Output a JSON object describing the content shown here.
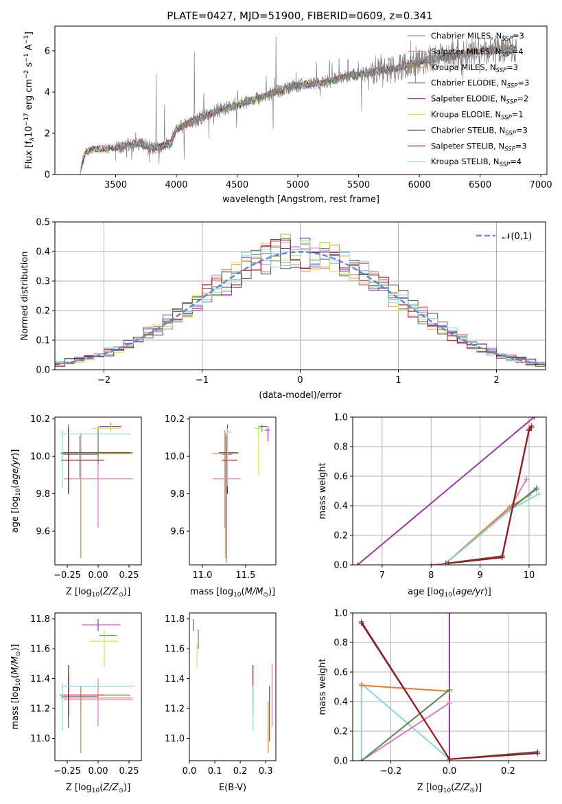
{
  "figure": {
    "title": "PLATE=0427, MJD=51900, FIBERID=0609, z=0.341"
  },
  "colors": {
    "chabrier_miles": "#7b96e0",
    "salpeter_miles": "#e377c2",
    "kroupa_miles": "#e8822b",
    "chabrier_elodie": "#4f8a4f",
    "salpeter_elodie": "#9b35a8",
    "kroupa_elodie": "#c9e84a",
    "chabrier_stelib": "#555555",
    "salpeter_stelib": "#a3141c",
    "kroupa_stelib": "#86d6e3",
    "data": "#808080",
    "normal": "#5b84d6",
    "grid": "#b0b0b0"
  },
  "chart_data": [
    {
      "id": "spectrum",
      "type": "line",
      "title": "PLATE=0427, MJD=51900, FIBERID=0609, z=0.341",
      "xlabel": "wavelength [Angstrom, rest frame]",
      "ylabel": "Flux [f_λ10⁻¹⁷ erg cm⁻² s⁻¹ A⁻¹]",
      "xlim": [
        3000,
        7050
      ],
      "ylim": [
        0,
        7.2
      ],
      "xticks": [
        3500,
        4000,
        4500,
        5000,
        5500,
        6000,
        6500,
        7000
      ],
      "yticks": [
        0,
        2,
        4,
        6
      ],
      "legend_position": "top-right",
      "continuum": {
        "x": [
          3200,
          3250,
          3300,
          3400,
          3500,
          3600,
          3700,
          3800,
          3900,
          3950,
          4000,
          4100,
          4200,
          4300,
          4400,
          4500,
          4600,
          4700,
          4800,
          4900,
          5000,
          5100,
          5200,
          5300,
          5400,
          5500,
          5600,
          5700,
          5800,
          5900,
          6000,
          6100,
          6200,
          6300,
          6400,
          6500,
          6600,
          6700,
          6800
        ],
        "y": [
          0.0,
          1.1,
          1.2,
          1.25,
          1.3,
          1.45,
          1.5,
          1.3,
          1.4,
          1.5,
          2.2,
          2.5,
          2.75,
          3.0,
          3.2,
          3.35,
          3.6,
          3.75,
          3.95,
          4.2,
          4.3,
          4.4,
          4.45,
          4.6,
          4.75,
          4.85,
          4.95,
          5.05,
          5.15,
          5.3,
          5.45,
          5.6,
          5.7,
          5.8,
          5.9,
          6.0,
          6.05,
          6.1,
          6.15
        ]
      },
      "series": [
        {
          "name": "Chabrier MILES, N_SSP=3",
          "label_main": "Chabrier MILES, N",
          "label_sub": "SSP",
          "label_tail": "=3",
          "color_key": "chabrier_miles"
        },
        {
          "name": "Salpeter MILES, N_SSP=4",
          "label_main": "Salpeter MILES, N",
          "label_sub": "SSP",
          "label_tail": "=4",
          "color_key": "salpeter_miles"
        },
        {
          "name": "Kroupa MILES, N_SSP=3",
          "label_main": "Kroupa MILES, N",
          "label_sub": "SSP",
          "label_tail": "=3",
          "color_key": "kroupa_miles"
        },
        {
          "name": "Chabrier ELODIE, N_SSP=3",
          "label_main": "Chabrier ELODIE, N",
          "label_sub": "SSP",
          "label_tail": "=3",
          "color_key": "chabrier_elodie"
        },
        {
          "name": "Salpeter ELODIE, N_SSP=2",
          "label_main": "Salpeter ELODIE, N",
          "label_sub": "SSP",
          "label_tail": "=2",
          "color_key": "salpeter_elodie"
        },
        {
          "name": "Kroupa ELODIE, N_SSP=1",
          "label_main": "Kroupa ELODIE, N",
          "label_sub": "SSP",
          "label_tail": "=1",
          "color_key": "kroupa_elodie"
        },
        {
          "name": "Chabrier STELIB, N_SSP=3",
          "label_main": "Chabrier STELIB, N",
          "label_sub": "SSP",
          "label_tail": "=3",
          "color_key": "chabrier_stelib"
        },
        {
          "name": "Salpeter STELIB, N_SSP=3",
          "label_main": "Salpeter STELIB, N",
          "label_sub": "SSP",
          "label_tail": "=3",
          "color_key": "salpeter_stelib"
        },
        {
          "name": "Kroupa STELIB, N_SSP=4",
          "label_main": "Kroupa STELIB, N",
          "label_sub": "SSP",
          "label_tail": "=4",
          "color_key": "kroupa_stelib"
        }
      ]
    },
    {
      "id": "residuals",
      "type": "line",
      "xlabel": "(data-model)/error",
      "ylabel": "Normed distribution",
      "xlim": [
        -2.5,
        2.5
      ],
      "ylim": [
        0,
        0.5
      ],
      "xticks": [
        -2,
        -1,
        0,
        1,
        2
      ],
      "yticks": [
        0.0,
        0.1,
        0.2,
        0.3,
        0.4,
        0.5
      ],
      "grid": true,
      "legend_position": "top-right",
      "legend_label": "𝒩(0,1)",
      "normal_curve": {
        "mean": 0,
        "sigma": 1
      },
      "bin_width": 0.1
    },
    {
      "id": "age_vs_Z",
      "type": "scatter",
      "xlabel": "Z [log10(Z/Z⊙)]",
      "ylabel": "age [log10(age/yr)]",
      "xlim": [
        -0.35,
        0.35
      ],
      "ylim": [
        9.42,
        10.21
      ],
      "xticks": [
        -0.25,
        0.0,
        0.25
      ],
      "yticks": [
        9.6,
        9.8,
        10.0,
        10.2
      ],
      "points": [
        {
          "color_key": "chabrier_miles",
          "x": -0.15,
          "xerr": [
            0.14,
            0.15
          ],
          "y": 10.01,
          "yerr": [
            0.13,
            0.1
          ]
        },
        {
          "color_key": "salpeter_miles",
          "x": 0.0,
          "xerr": [
            0.28,
            0.28
          ],
          "y": 9.88,
          "yerr": [
            0.26,
            0.26
          ]
        },
        {
          "color_key": "kroupa_miles",
          "x": -0.14,
          "xerr": [
            0.17,
            0.42
          ],
          "y": 10.015,
          "yerr": [
            0.56,
            0.11
          ]
        },
        {
          "color_key": "chabrier_elodie",
          "x": 0.0,
          "xerr": [
            0.28,
            0.28
          ],
          "y": 10.02,
          "yerr": [
            0.06,
            0.14
          ]
        },
        {
          "color_key": "salpeter_elodie",
          "x": 0.1,
          "xerr": [
            0.09,
            0.09
          ],
          "y": 10.16,
          "yerr": [
            0.02,
            0.02
          ]
        },
        {
          "color_key": "kroupa_elodie",
          "x": 0.1,
          "xerr": [
            0.15,
            0.08
          ],
          "y": 10.15,
          "yerr": [
            0.02,
            0.02
          ]
        },
        {
          "color_key": "chabrier_stelib",
          "x": -0.24,
          "xerr": [
            0.06,
            0.5
          ],
          "y": 10.02,
          "yerr": [
            0.22,
            0.15
          ]
        },
        {
          "color_key": "salpeter_stelib",
          "x": -0.24,
          "xerr": [
            0.06,
            0.29
          ],
          "y": 9.98,
          "yerr": [
            0.18,
            0.17
          ]
        },
        {
          "color_key": "kroupa_stelib",
          "x": -0.29,
          "xerr": [
            0.01,
            0.55
          ],
          "y": 10.12,
          "yerr": [
            0.29,
            0.02
          ]
        }
      ]
    },
    {
      "id": "age_vs_mass",
      "type": "scatter",
      "xlabel": "mass [log10(M/M⊙)]",
      "ylabel": "",
      "xlim": [
        10.85,
        11.85
      ],
      "ylim": [
        9.42,
        10.21
      ],
      "xticks": [
        11.0,
        11.5
      ],
      "yticks": [
        9.6,
        9.8,
        10.0,
        10.2
      ],
      "points": [
        {
          "color_key": "chabrier_miles",
          "x": 11.28,
          "xerr": [
            0.05,
            0.06
          ],
          "y": 10.01,
          "yerr": [
            0.58,
            0.1
          ]
        },
        {
          "color_key": "salpeter_miles",
          "x": 11.26,
          "xerr": [
            0.14,
            0.18
          ],
          "y": 9.88,
          "yerr": [
            0.26,
            0.26
          ]
        },
        {
          "color_key": "kroupa_miles",
          "x": 11.27,
          "xerr": [
            0.16,
            0.15
          ],
          "y": 10.015,
          "yerr": [
            0.56,
            0.11
          ]
        },
        {
          "color_key": "chabrier_elodie",
          "x": 11.69,
          "xerr": [
            0.04,
            0.06
          ],
          "y": 10.16,
          "yerr": [
            0.03,
            0.01
          ]
        },
        {
          "color_key": "salpeter_elodie",
          "x": 11.76,
          "xerr": [
            0.04,
            0.02
          ],
          "y": 10.14,
          "yerr": [
            0.06,
            0.02
          ]
        },
        {
          "color_key": "kroupa_elodie",
          "x": 11.65,
          "xerr": [
            0.05,
            0.05
          ],
          "y": 10.15,
          "yerr": [
            0.25,
            0.01
          ]
        },
        {
          "color_key": "chabrier_stelib",
          "x": 11.29,
          "xerr": [
            0.1,
            0.12
          ],
          "y": 10.02,
          "yerr": [
            0.22,
            0.15
          ]
        },
        {
          "color_key": "salpeter_stelib",
          "x": 11.29,
          "xerr": [
            0.06,
            0.11
          ],
          "y": 9.98,
          "yerr": [
            0.18,
            0.17
          ]
        },
        {
          "color_key": "kroupa_stelib",
          "x": 11.29,
          "xerr": [
            0.02,
            0.05
          ],
          "y": 10.13,
          "yerr": [
            0.29,
            0.02
          ]
        }
      ]
    },
    {
      "id": "mass_weight_vs_age",
      "type": "line",
      "xlabel": "age [log10(age/yr)]",
      "ylabel": "mass weight",
      "xlim": [
        6.4,
        10.35
      ],
      "ylim": [
        0,
        1.0
      ],
      "xticks": [
        7,
        8,
        9,
        10
      ],
      "yticks": [
        0.0,
        0.2,
        0.4,
        0.6,
        0.8,
        1.0
      ],
      "grid": true,
      "series": [
        {
          "color_key": "salpeter_elodie",
          "x": [
            6.5,
            10.1
          ],
          "y": [
            0.0,
            1.0
          ]
        },
        {
          "color_key": "chabrier_miles",
          "x": [
            8.3,
            9.6,
            10.15
          ],
          "y": [
            0.01,
            0.38,
            0.51
          ]
        },
        {
          "color_key": "salpeter_miles",
          "x": [
            8.0,
            8.3,
            9.6,
            9.95
          ],
          "y": [
            0.0,
            0.01,
            0.38,
            0.58
          ]
        },
        {
          "color_key": "kroupa_miles",
          "x": [
            8.3,
            9.6,
            10.0
          ],
          "y": [
            0.01,
            0.39,
            0.47
          ]
        },
        {
          "color_key": "chabrier_elodie",
          "x": [
            8.3,
            9.6,
            10.15
          ],
          "y": [
            0.01,
            0.37,
            0.52
          ]
        },
        {
          "color_key": "kroupa_stelib",
          "x": [
            8.3,
            9.6,
            10.2
          ],
          "y": [
            0.01,
            0.37,
            0.48
          ]
        },
        {
          "color_key": "chabrier_stelib",
          "x": [
            8.3,
            9.45,
            10.0,
            10.05
          ],
          "y": [
            0.01,
            0.06,
            0.92,
            0.94
          ]
        },
        {
          "color_key": "salpeter_stelib",
          "x": [
            8.35,
            9.45,
            10.0,
            10.05
          ],
          "y": [
            0.01,
            0.05,
            0.91,
            0.93
          ]
        }
      ]
    },
    {
      "id": "mass_vs_Z",
      "type": "scatter",
      "xlabel": "Z [log10(Z/Z⊙)]",
      "ylabel": "mass [log10(M/M⊙)]",
      "xlim": [
        -0.35,
        0.35
      ],
      "ylim": [
        10.85,
        11.84
      ],
      "xticks": [
        -0.25,
        0.0,
        0.25
      ],
      "yticks": [
        11.0,
        11.2,
        11.4,
        11.6,
        11.8
      ],
      "points": [
        {
          "color_key": "chabrier_miles",
          "x": -0.14,
          "xerr": [
            0.16,
            0.14
          ],
          "y": 11.28,
          "yerr": [
            0.07,
            0.07
          ]
        },
        {
          "color_key": "salpeter_miles",
          "x": 0.0,
          "xerr": [
            0.28,
            0.28
          ],
          "y": 11.26,
          "yerr": [
            0.18,
            0.14
          ]
        },
        {
          "color_key": "kroupa_miles",
          "x": -0.14,
          "xerr": [
            0.16,
            0.42
          ],
          "y": 11.27,
          "yerr": [
            0.37,
            0.08
          ]
        },
        {
          "color_key": "chabrier_elodie",
          "x": 0.05,
          "xerr": [
            0.04,
            0.1
          ],
          "y": 11.69,
          "yerr": [
            0.01,
            0.01
          ]
        },
        {
          "color_key": "salpeter_elodie",
          "x": 0.0,
          "xerr": [
            0.13,
            0.18
          ],
          "y": 11.76,
          "yerr": [
            0.04,
            0.04
          ]
        },
        {
          "color_key": "kroupa_elodie",
          "x": 0.05,
          "xerr": [
            0.12,
            0.11
          ],
          "y": 11.65,
          "yerr": [
            0.17,
            0.08
          ]
        },
        {
          "color_key": "chabrier_stelib",
          "x": -0.24,
          "xerr": [
            0.07,
            0.5
          ],
          "y": 11.29,
          "yerr": [
            0.22,
            0.13
          ]
        },
        {
          "color_key": "salpeter_stelib",
          "x": -0.24,
          "xerr": [
            0.06,
            0.29
          ],
          "y": 11.29,
          "yerr": [
            0.14,
            0.2
          ]
        },
        {
          "color_key": "kroupa_stelib",
          "x": -0.29,
          "xerr": [
            0.01,
            0.59
          ],
          "y": 11.35,
          "yerr": [
            0.3,
            0.02
          ]
        }
      ]
    },
    {
      "id": "mass_vs_ebv",
      "type": "scatter",
      "xlabel": "E(B-V)",
      "ylabel": "",
      "xlim": [
        0.0,
        0.34
      ],
      "ylim": [
        10.85,
        11.84
      ],
      "xticks": [
        0.0,
        0.1,
        0.2,
        0.3
      ],
      "yticks": [
        11.0,
        11.2,
        11.4,
        11.6,
        11.8
      ],
      "points": [
        {
          "color_key": "chabrier_miles",
          "x": 0.25,
          "xerr": [
            0,
            0
          ],
          "y": 11.28,
          "yerr": [
            0.07,
            0.07
          ]
        },
        {
          "color_key": "salpeter_miles",
          "x": 0.325,
          "xerr": [
            0,
            0
          ],
          "y": 11.26,
          "yerr": [
            0.18,
            0.24
          ]
        },
        {
          "color_key": "kroupa_miles",
          "x": 0.31,
          "xerr": [
            0,
            0
          ],
          "y": 11.2,
          "yerr": [
            0.3,
            0.05
          ]
        },
        {
          "color_key": "chabrier_elodie",
          "x": 0.035,
          "xerr": [
            0,
            0
          ],
          "y": 11.66,
          "yerr": [
            0.06,
            0.07
          ]
        },
        {
          "color_key": "salpeter_elodie",
          "x": 0.015,
          "xerr": [
            0,
            0
          ],
          "y": 11.76,
          "yerr": [
            0.04,
            0.04
          ]
        },
        {
          "color_key": "kroupa_elodie",
          "x": 0.03,
          "xerr": [
            0,
            0
          ],
          "y": 11.56,
          "yerr": [
            0.09,
            0.07
          ]
        },
        {
          "color_key": "chabrier_stelib",
          "x": 0.315,
          "xerr": [
            0,
            0
          ],
          "y": 11.2,
          "yerr": [
            0.22,
            0.15
          ]
        },
        {
          "color_key": "salpeter_stelib",
          "x": 0.25,
          "xerr": [
            0,
            0
          ],
          "y": 11.35,
          "yerr": [
            0.2,
            0.14
          ]
        },
        {
          "color_key": "kroupa_stelib",
          "x": 0.25,
          "xerr": [
            0,
            0
          ],
          "y": 11.2,
          "yerr": [
            0.15,
            0.15
          ]
        }
      ]
    },
    {
      "id": "mass_weight_vs_Z",
      "type": "line",
      "xlabel": "Z [log10(Z/Z⊙)]",
      "ylabel": "mass weight",
      "xlim": [
        -0.33,
        0.33
      ],
      "ylim": [
        0,
        1.0
      ],
      "xticks": [
        -0.2,
        0.0,
        0.2
      ],
      "yticks": [
        0.0,
        0.2,
        0.4,
        0.6,
        0.8,
        1.0
      ],
      "grid": true,
      "series": [
        {
          "color_key": "salpeter_elodie",
          "x": [
            0.0,
            0.0
          ],
          "y": [
            0.0,
            1.0
          ]
        },
        {
          "color_key": "kroupa_stelib",
          "x": [
            -0.3,
            -0.3,
            0.0
          ],
          "y": [
            0.0,
            0.52,
            0.01
          ]
        },
        {
          "color_key": "chabrier_miles",
          "x": [
            -0.3,
            0.0
          ],
          "y": [
            0.51,
            0.47
          ]
        },
        {
          "color_key": "kroupa_miles",
          "x": [
            -0.3,
            0.0
          ],
          "y": [
            0.51,
            0.47
          ]
        },
        {
          "color_key": "salpeter_miles",
          "x": [
            -0.3,
            0.0
          ],
          "y": [
            0.0,
            0.39
          ]
        },
        {
          "color_key": "chabrier_elodie",
          "x": [
            -0.3,
            0.0
          ],
          "y": [
            0.0,
            0.48
          ]
        },
        {
          "color_key": "chabrier_stelib",
          "x": [
            -0.3,
            0.0,
            0.3
          ],
          "y": [
            0.94,
            0.01,
            0.06
          ]
        },
        {
          "color_key": "salpeter_stelib",
          "x": [
            -0.3,
            0.0,
            0.3
          ],
          "y": [
            0.93,
            0.01,
            0.05
          ]
        }
      ]
    }
  ]
}
